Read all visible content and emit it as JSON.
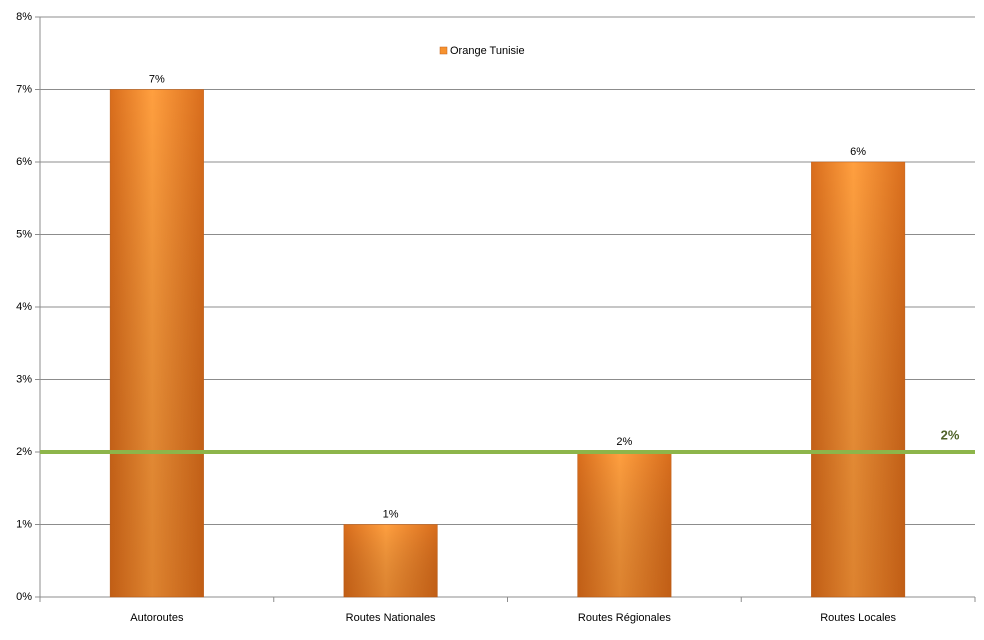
{
  "chart_data": {
    "type": "bar",
    "categories": [
      "Autoroutes",
      "Routes Nationales",
      "Routes Régionales",
      "Routes Locales"
    ],
    "series": [
      {
        "name": "Orange Tunisie",
        "color": "#f7922f",
        "values": [
          7,
          1,
          2,
          6
        ],
        "value_labels": [
          "7%",
          "1%",
          "2%",
          "6%"
        ]
      }
    ],
    "ylim": [
      0,
      8
    ],
    "yticks": [
      {
        "value": 0,
        "label": "0%"
      },
      {
        "value": 1,
        "label": "1%"
      },
      {
        "value": 2,
        "label": "2%"
      },
      {
        "value": 3,
        "label": "3%"
      },
      {
        "value": 4,
        "label": "4%"
      },
      {
        "value": 5,
        "label": "5%"
      },
      {
        "value": 6,
        "label": "6%"
      },
      {
        "value": 7,
        "label": "7%"
      },
      {
        "value": 8,
        "label": "8%"
      }
    ],
    "grid": true,
    "legend": "top",
    "reference_line": {
      "value": 2,
      "label": "2%",
      "color": "#8db54a"
    }
  }
}
